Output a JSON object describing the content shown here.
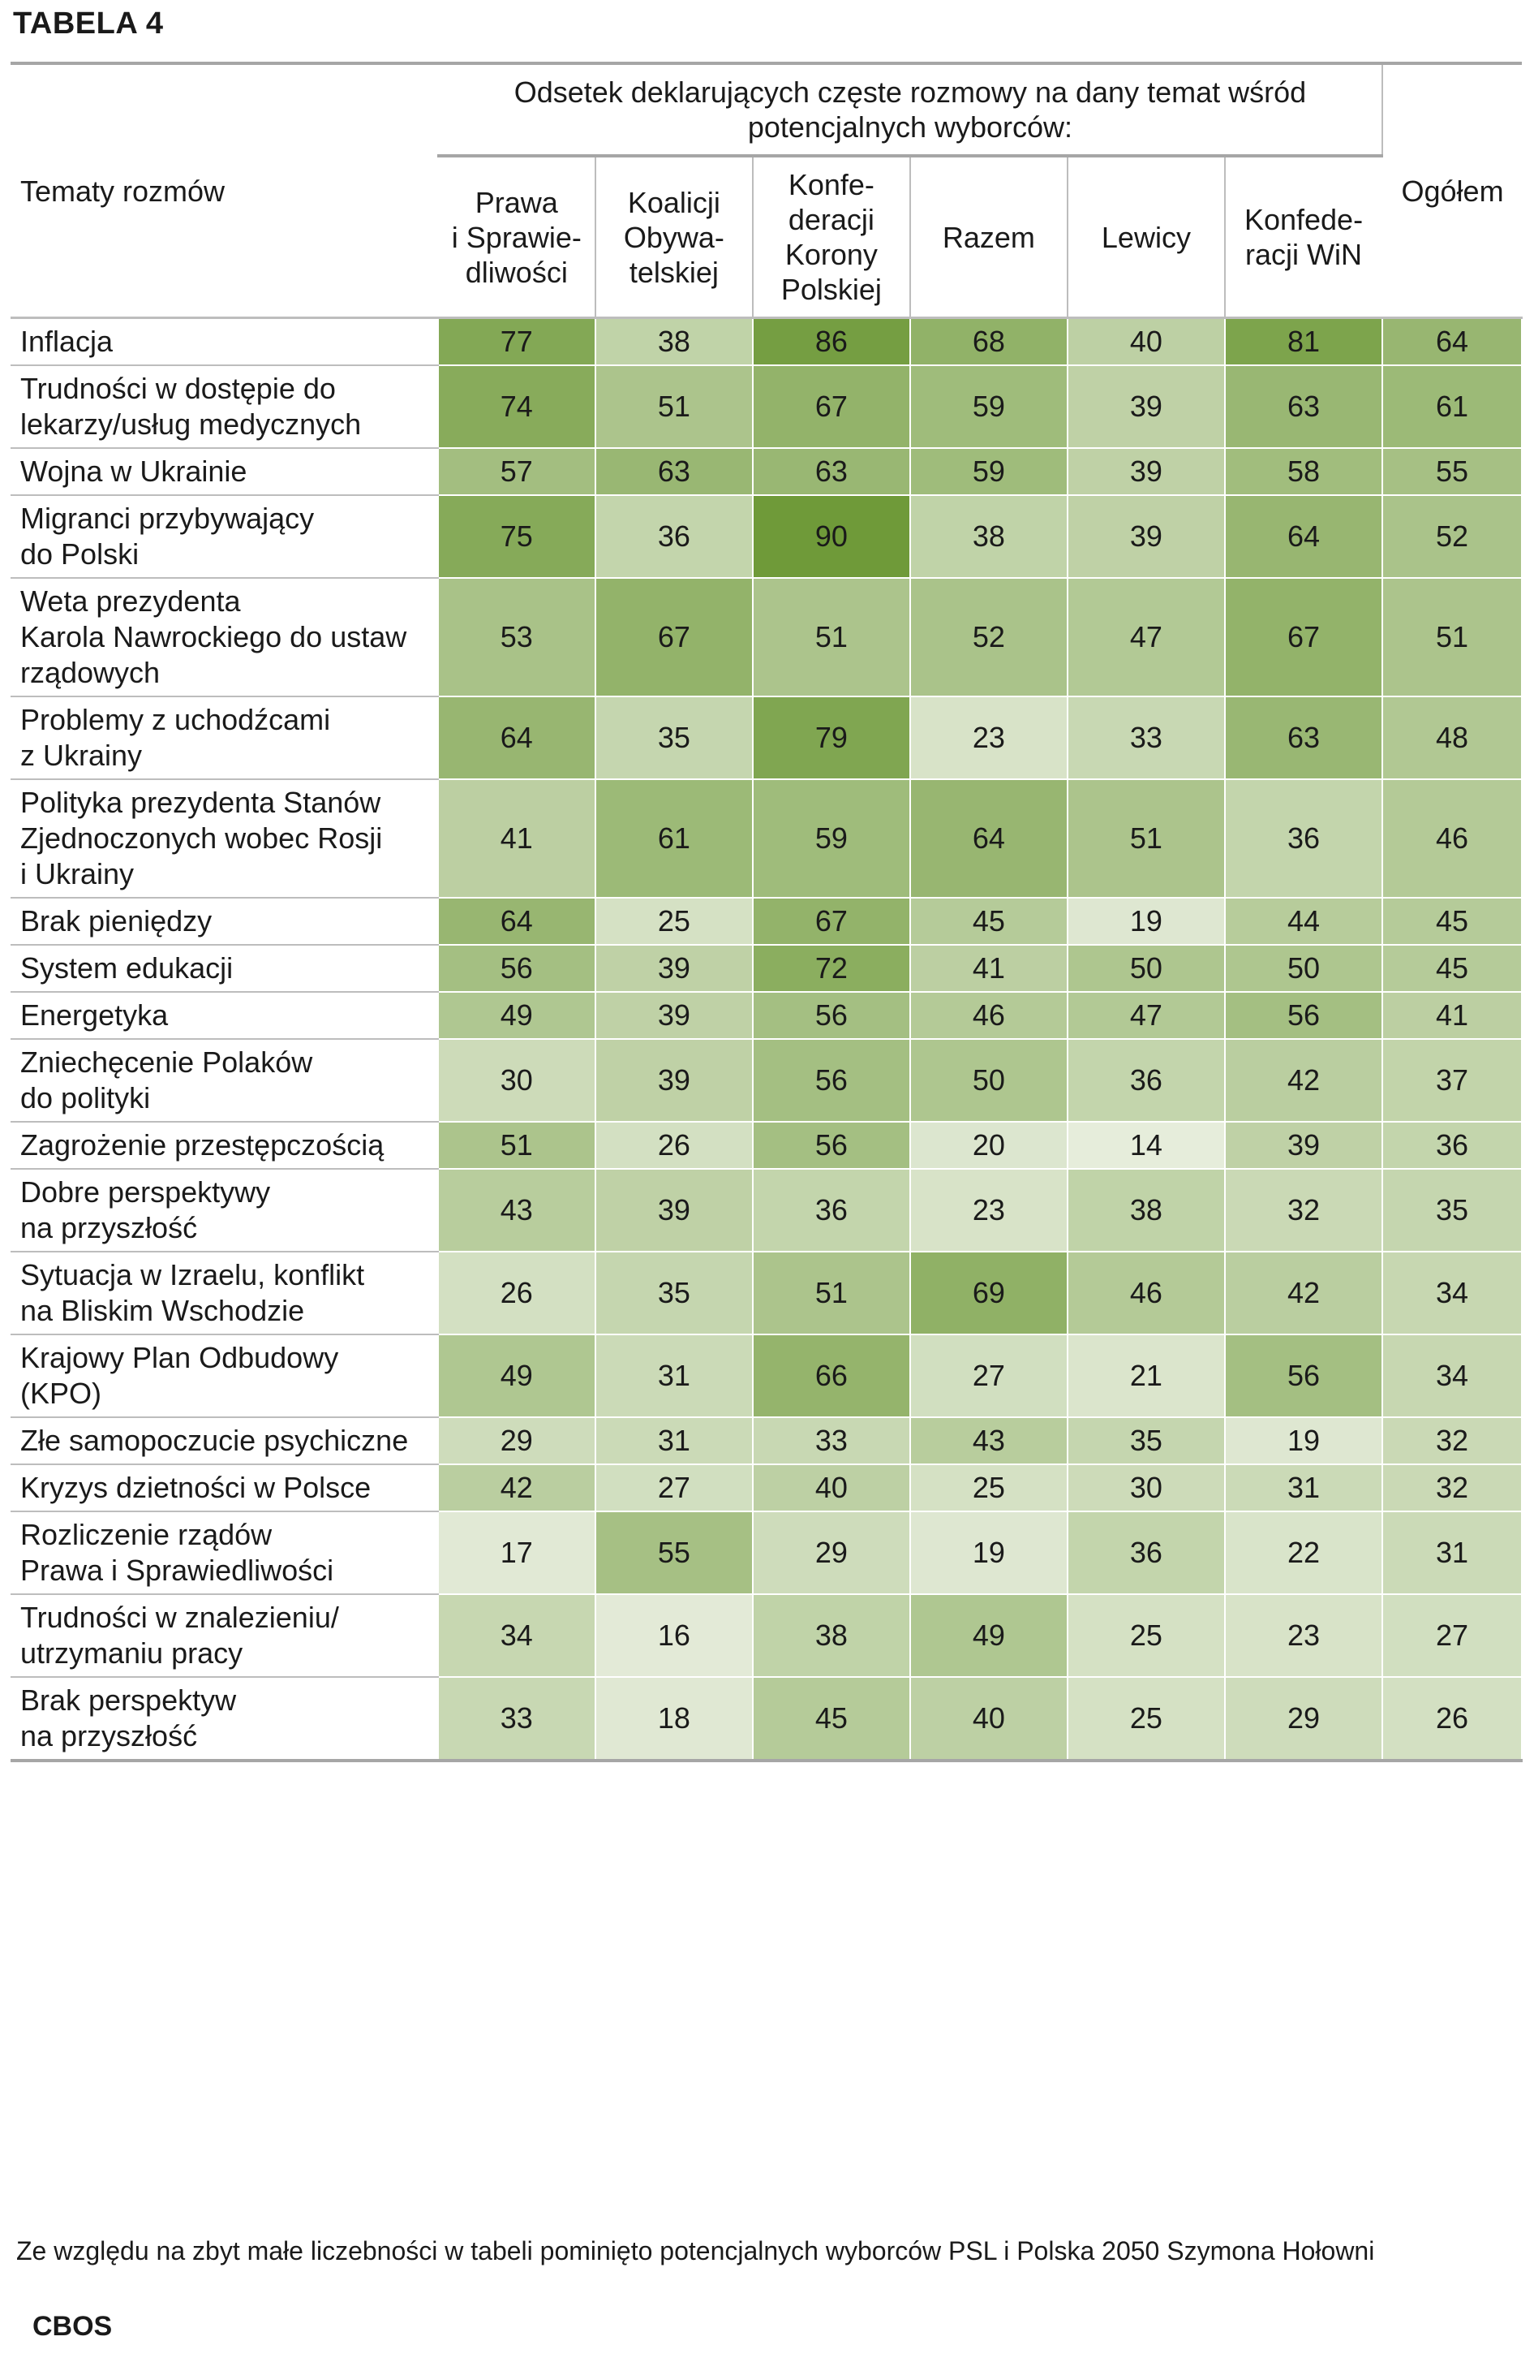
{
  "title": "TABELA 4",
  "chart_data": {
    "type": "table",
    "title": "TABELA 4",
    "row_header": "Tematy rozmów",
    "group_header": "Odsetek deklarujących częste rozmowy na dany temat wśród potencjalnych wyborców:",
    "columns": [
      "Prawa i Sprawiedliwości",
      "Koalicji Obywatelskiej",
      "Konfederacji Korony Polskiej",
      "Razem",
      "Lewicy",
      "Konfederacji WiN",
      "Ogółem"
    ],
    "column_labels": [
      "Prawa\ni Sprawie-\ndliwości",
      "Koalicji\nObywa-\ntelskiej",
      "Konfe-\nderacji\nKorony\nPolskiej",
      "Razem",
      "Lewicy",
      "Konfede-\nracji WiN",
      "Ogółem"
    ],
    "rows": [
      {
        "topic": "Inflacja",
        "values": [
          77,
          38,
          86,
          68,
          40,
          81,
          64
        ]
      },
      {
        "topic": "Trudności w dostępie do lekarzy/usług medycznych",
        "values": [
          74,
          51,
          67,
          59,
          39,
          63,
          61
        ]
      },
      {
        "topic": "Wojna w Ukrainie",
        "values": [
          57,
          63,
          63,
          59,
          39,
          58,
          55
        ]
      },
      {
        "topic": "Migranci przybywający do Polski",
        "values": [
          75,
          36,
          90,
          38,
          39,
          64,
          52
        ]
      },
      {
        "topic": "Weta prezydenta Karola Nawrockiego do ustaw rządowych",
        "values": [
          53,
          67,
          51,
          52,
          47,
          67,
          51
        ]
      },
      {
        "topic": "Problemy z uchodźcami z Ukrainy",
        "values": [
          64,
          35,
          79,
          23,
          33,
          63,
          48
        ]
      },
      {
        "topic": "Polityka prezydenta Stanów Zjednoczonych wobec Rosji i Ukrainy",
        "values": [
          41,
          61,
          59,
          64,
          51,
          36,
          46
        ]
      },
      {
        "topic": "Brak pieniędzy",
        "values": [
          64,
          25,
          67,
          45,
          19,
          44,
          45
        ]
      },
      {
        "topic": "System edukacji",
        "values": [
          56,
          39,
          72,
          41,
          50,
          50,
          45
        ]
      },
      {
        "topic": "Energetyka",
        "values": [
          49,
          39,
          56,
          46,
          47,
          56,
          41
        ]
      },
      {
        "topic": "Zniechęcenie Polaków do polityki",
        "values": [
          30,
          39,
          56,
          50,
          36,
          42,
          37
        ]
      },
      {
        "topic": "Zagrożenie przestępczością",
        "values": [
          51,
          26,
          56,
          20,
          14,
          39,
          36
        ]
      },
      {
        "topic": "Dobre perspektywy na przyszłość",
        "values": [
          43,
          39,
          36,
          23,
          38,
          32,
          35
        ]
      },
      {
        "topic": "Sytuacja w Izraelu, konflikt na Bliskim Wschodzie",
        "values": [
          26,
          35,
          51,
          69,
          46,
          42,
          34
        ]
      },
      {
        "topic": "Krajowy Plan Odbudowy (KPO)",
        "values": [
          49,
          31,
          66,
          27,
          21,
          56,
          34
        ]
      },
      {
        "topic": "Złe samopoczucie psychiczne",
        "values": [
          29,
          31,
          33,
          43,
          35,
          19,
          32
        ]
      },
      {
        "topic": "Kryzys dzietności w Polsce",
        "values": [
          42,
          27,
          40,
          25,
          30,
          31,
          32
        ]
      },
      {
        "topic": "Rozliczenie rządów Prawa i Sprawiedliwości",
        "values": [
          17,
          55,
          29,
          19,
          36,
          22,
          31
        ]
      },
      {
        "topic": "Trudności w znalezieniu/ utrzymaniu pracy",
        "values": [
          34,
          16,
          38,
          49,
          25,
          23,
          27
        ]
      },
      {
        "topic": "Brak perspektyw na przyszłość",
        "values": [
          33,
          18,
          45,
          40,
          25,
          29,
          26
        ]
      }
    ],
    "color_scale": {
      "low": "#ecf1e4",
      "high": "#6f9a39",
      "min": 10,
      "max": 90
    }
  },
  "footnote": "Ze względu na zbyt małe liczebności w tabeli pominięto potencjalnych wyborców PSL i Polska 2050 Szymona Hołowni",
  "source": "CBOS"
}
